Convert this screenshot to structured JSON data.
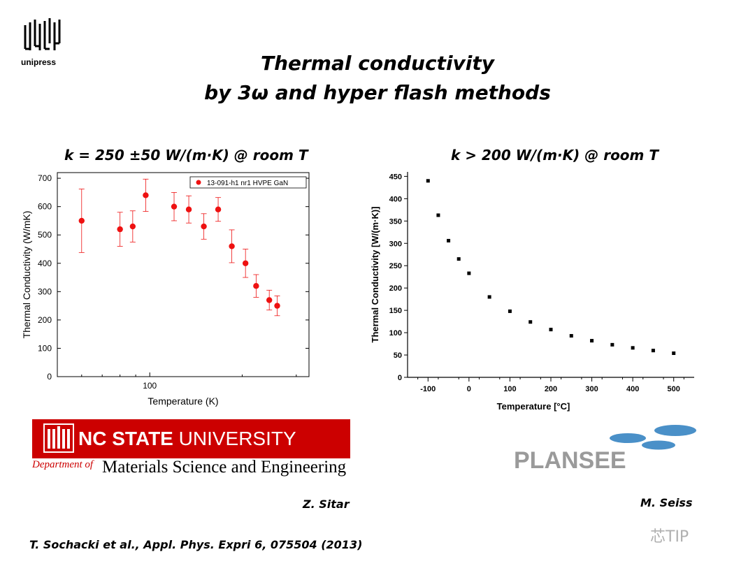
{
  "header": {
    "logo_text": "unipress",
    "title_line1": "Thermal conductivity",
    "title_line2": "by 3ω and hyper flash methods"
  },
  "left_panel": {
    "heading": "k = 250 ±50 W/(m·K) @ room T",
    "chart_data": {
      "type": "scatter",
      "xscale": "log",
      "xlabel": "Temperature (K)",
      "ylabel": "Thermal Conductivity (W/mK)",
      "xlim": [
        50,
        330
      ],
      "ylim": [
        0,
        720
      ],
      "xticks": [
        {
          "value": 100,
          "label": "100"
        }
      ],
      "yticks": [
        0,
        100,
        200,
        300,
        400,
        500,
        600,
        700
      ],
      "legend": "top-right",
      "color": "#ee1111",
      "series": [
        {
          "name": "13-091-h1 nr1 HVPE GaN",
          "points": [
            {
              "x": 60,
              "y": 550,
              "err": 112
            },
            {
              "x": 80,
              "y": 520,
              "err": 60
            },
            {
              "x": 88,
              "y": 530,
              "err": 55
            },
            {
              "x": 97,
              "y": 640,
              "err": 57
            },
            {
              "x": 120,
              "y": 600,
              "err": 50
            },
            {
              "x": 134,
              "y": 590,
              "err": 48
            },
            {
              "x": 150,
              "y": 530,
              "err": 45
            },
            {
              "x": 167,
              "y": 590,
              "err": 42
            },
            {
              "x": 185,
              "y": 460,
              "err": 58
            },
            {
              "x": 205,
              "y": 400,
              "err": 50
            },
            {
              "x": 222,
              "y": 320,
              "err": 40
            },
            {
              "x": 245,
              "y": 270,
              "err": 35
            },
            {
              "x": 260,
              "y": 250,
              "err": 35
            }
          ]
        }
      ]
    }
  },
  "right_panel": {
    "heading": "k > 200 W/(m·K) @ room T",
    "chart_data": {
      "type": "scatter",
      "xlabel": "Temperature [°C]",
      "ylabel": "Thermal Conductivity [W/(m·K)]",
      "xlim": [
        -150,
        550
      ],
      "ylim": [
        0,
        460
      ],
      "xticks": [
        -100,
        0,
        100,
        200,
        300,
        400,
        500
      ],
      "yticks": [
        0,
        50,
        100,
        150,
        200,
        250,
        300,
        350,
        400,
        450
      ],
      "color": "#000000",
      "series": [
        {
          "points": [
            {
              "x": -100,
              "y": 440
            },
            {
              "x": -75,
              "y": 363
            },
            {
              "x": -50,
              "y": 306
            },
            {
              "x": -25,
              "y": 265
            },
            {
              "x": 0,
              "y": 233
            },
            {
              "x": 50,
              "y": 180
            },
            {
              "x": 100,
              "y": 148
            },
            {
              "x": 150,
              "y": 124
            },
            {
              "x": 200,
              "y": 107
            },
            {
              "x": 250,
              "y": 93
            },
            {
              "x": 300,
              "y": 82
            },
            {
              "x": 350,
              "y": 73
            },
            {
              "x": 400,
              "y": 66
            },
            {
              "x": 450,
              "y": 60
            },
            {
              "x": 500,
              "y": 54
            }
          ]
        }
      ]
    }
  },
  "logos": {
    "ncsu_name_bold": "NC STATE",
    "ncsu_name_rest": " UNIVERSITY",
    "ncsu_dept_prefix": "Department of",
    "ncsu_dept": "Materials Science and Engineering",
    "plansee": "PLANSEE"
  },
  "authors": {
    "left": "Z. Sitar",
    "right": "M. Seiss"
  },
  "reference": "T. Sochacki et al., Appl. Phys. Expri 6, 075504 (2013)",
  "watermark": "芯TIP"
}
